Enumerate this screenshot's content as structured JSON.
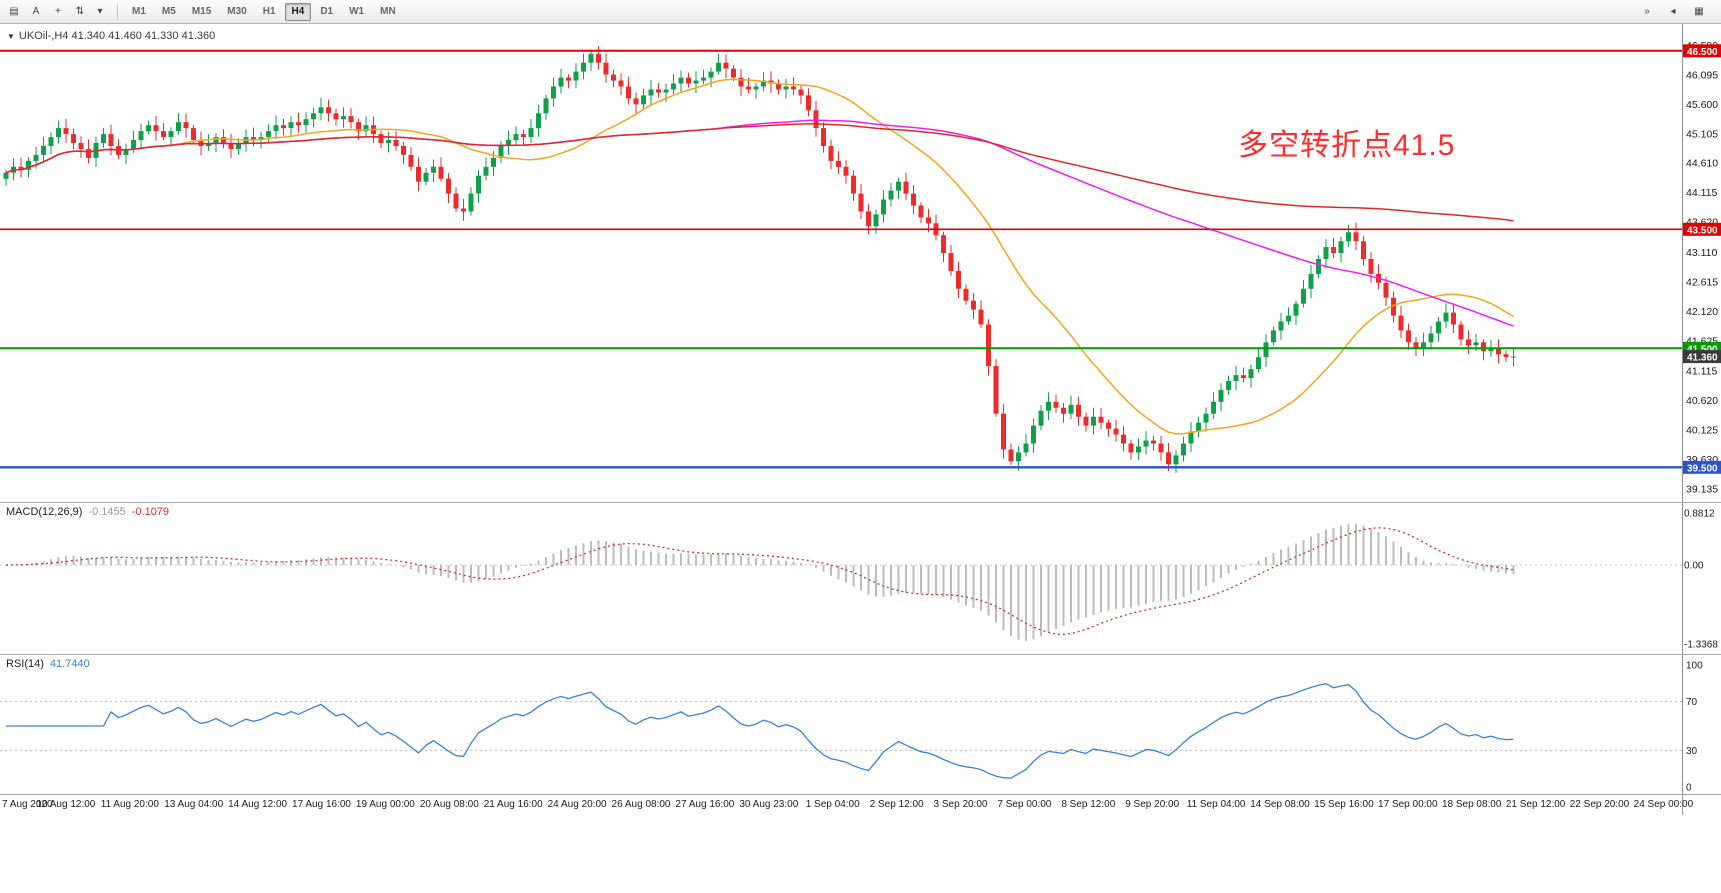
{
  "toolbar": {
    "left_icons": [
      {
        "name": "chart-layers-icon",
        "glyph": "▤"
      },
      {
        "name": "text-tool-icon",
        "glyph": "A"
      },
      {
        "name": "crosshair-icon",
        "glyph": "+"
      },
      {
        "name": "cycle-lines-icon",
        "glyph": "⇅"
      }
    ],
    "dropdown_caret": "▾",
    "timeframes": [
      "M1",
      "M5",
      "M15",
      "M30",
      "H1",
      "H4",
      "D1",
      "W1",
      "MN"
    ],
    "active_timeframe": "H4",
    "right_icons": [
      {
        "name": "chart-shift-icon",
        "glyph": "»"
      },
      {
        "name": "auto-scroll-icon",
        "glyph": "◂"
      },
      {
        "name": "chart-properties-icon",
        "glyph": "▦"
      }
    ]
  },
  "chart": {
    "symbol_title": "UKOil-,H4 41.340 41.460 41.330 41.360",
    "collapse_arrow": "▼",
    "annotation": {
      "text": "多空转折点41.5",
      "color": "#ff2d2d"
    },
    "price_axis": [
      "46.590",
      "46.095",
      "45.600",
      "45.105",
      "44.610",
      "44.115",
      "43.620",
      "43.110",
      "42.615",
      "42.120",
      "41.625",
      "41.115",
      "40.620",
      "40.125",
      "39.630",
      "39.135"
    ],
    "levels": [
      {
        "label": "46.500",
        "price": 46.5,
        "color": "#e00000",
        "line_width": 2
      },
      {
        "label": "43.500",
        "price": 43.5,
        "color": "#e00000",
        "line_width": 1.6
      },
      {
        "label": "41.500",
        "price": 41.5,
        "color": "#009b00",
        "line_width": 2
      },
      {
        "label": "39.500",
        "price": 39.5,
        "color": "#2b52d0",
        "line_width": 2.4
      }
    ],
    "current_price": {
      "label": "41.360",
      "price": 41.36,
      "color": "#3a3a3a"
    }
  },
  "chart_data": {
    "type": "candlestick",
    "symbol": "UKOil-",
    "timeframe": "H4",
    "title": "UKOil-,H4",
    "ohlc_shown": {
      "open": "41.340",
      "high": "41.460",
      "low": "41.330",
      "close": "41.360"
    },
    "ylim": [
      39.0,
      46.95
    ],
    "first_open": 44.35,
    "up_color": "#10a04a",
    "down_color": "#ee2b2b",
    "closes": [
      44.45,
      44.55,
      44.5,
      44.65,
      44.75,
      44.9,
      45.05,
      45.2,
      45.1,
      44.95,
      44.85,
      44.7,
      44.95,
      45.1,
      44.9,
      44.75,
      44.85,
      45.0,
      45.15,
      45.25,
      45.15,
      45.05,
      45.15,
      45.3,
      45.2,
      45.0,
      44.9,
      44.95,
      45.05,
      44.95,
      44.85,
      44.95,
      45.05,
      45.0,
      45.05,
      45.15,
      45.25,
      45.2,
      45.3,
      45.25,
      45.35,
      45.45,
      45.55,
      45.45,
      45.35,
      45.4,
      45.3,
      45.15,
      45.25,
      45.1,
      44.95,
      45.0,
      44.9,
      44.75,
      44.55,
      44.3,
      44.45,
      44.55,
      44.35,
      44.1,
      43.85,
      43.8,
      44.1,
      44.4,
      44.55,
      44.7,
      44.9,
      45.0,
      45.1,
      45.05,
      45.2,
      45.45,
      45.7,
      45.9,
      46.05,
      46.0,
      46.15,
      46.3,
      46.45,
      46.3,
      46.1,
      46.0,
      45.9,
      45.7,
      45.6,
      45.75,
      45.85,
      45.8,
      45.85,
      45.95,
      46.05,
      45.95,
      46.0,
      46.05,
      46.15,
      46.3,
      46.2,
      46.05,
      45.9,
      45.85,
      45.9,
      46.0,
      45.95,
      45.85,
      45.9,
      45.85,
      45.75,
      45.5,
      45.2,
      44.9,
      44.65,
      44.55,
      44.4,
      44.1,
      43.8,
      43.55,
      43.75,
      44.0,
      44.15,
      44.3,
      44.1,
      43.9,
      43.7,
      43.6,
      43.4,
      43.1,
      42.8,
      42.5,
      42.3,
      42.15,
      41.9,
      41.2,
      40.4,
      39.8,
      39.6,
      39.75,
      39.9,
      40.2,
      40.45,
      40.6,
      40.5,
      40.4,
      40.55,
      40.35,
      40.2,
      40.35,
      40.25,
      40.15,
      40.05,
      39.9,
      39.75,
      39.85,
      39.95,
      39.9,
      39.75,
      39.55,
      39.7,
      39.9,
      40.1,
      40.25,
      40.4,
      40.6,
      40.8,
      40.95,
      41.05,
      41.0,
      41.15,
      41.35,
      41.6,
      41.8,
      41.95,
      42.05,
      42.25,
      42.5,
      42.75,
      43.0,
      43.2,
      43.1,
      43.3,
      43.45,
      43.3,
      43.0,
      42.75,
      42.6,
      42.35,
      42.05,
      41.8,
      41.6,
      41.5,
      41.6,
      41.75,
      41.95,
      42.1,
      41.9,
      41.65,
      41.55,
      41.6,
      41.45,
      41.5,
      41.4,
      41.35,
      41.36
    ],
    "ma_lines": [
      {
        "name": "fast-ma",
        "period": 24,
        "color": "#f7a420"
      },
      {
        "name": "mid-ma",
        "period": 96,
        "color": "#f01ff0"
      },
      {
        "name": "slow-ma",
        "period": 200,
        "color": "#e02828"
      }
    ],
    "macd": {
      "fast": 12,
      "slow": 26,
      "signal": 9,
      "label": "MACD(12,26,9)",
      "value_main": "-0.1455",
      "value_signal": "-0.1079",
      "axis_labels": [
        "0.8812",
        "0.00",
        "-1.3368"
      ],
      "hist_color": "#bcbcbc",
      "signal_color": "#d43030"
    },
    "rsi": {
      "period": 14,
      "label": "RSI(14)",
      "value": "41.7440",
      "axis_labels": [
        "100",
        "70",
        "30",
        "0"
      ],
      "levels": [
        70,
        30
      ],
      "color": "#3b82d8"
    },
    "time_axis": [
      "7 Aug 2020",
      "10 Aug 12:00",
      "11 Aug 20:00",
      "13 Aug 04:00",
      "14 Aug 12:00",
      "17 Aug 16:00",
      "19 Aug 00:00",
      "20 Aug 08:00",
      "21 Aug 16:00",
      "24 Aug 20:00",
      "26 Aug 08:00",
      "27 Aug 16:00",
      "30 Aug 23:00",
      "1 Sep 04:00",
      "2 Sep 12:00",
      "3 Sep 20:00",
      "7 Sep 00:00",
      "8 Sep 12:00",
      "9 Sep 20:00",
      "11 Sep 04:00",
      "14 Sep 08:00",
      "15 Sep 16:00",
      "17 Sep 00:00",
      "18 Sep 08:00",
      "21 Sep 12:00",
      "22 Sep 20:00",
      "24 Sep 00:00"
    ]
  }
}
